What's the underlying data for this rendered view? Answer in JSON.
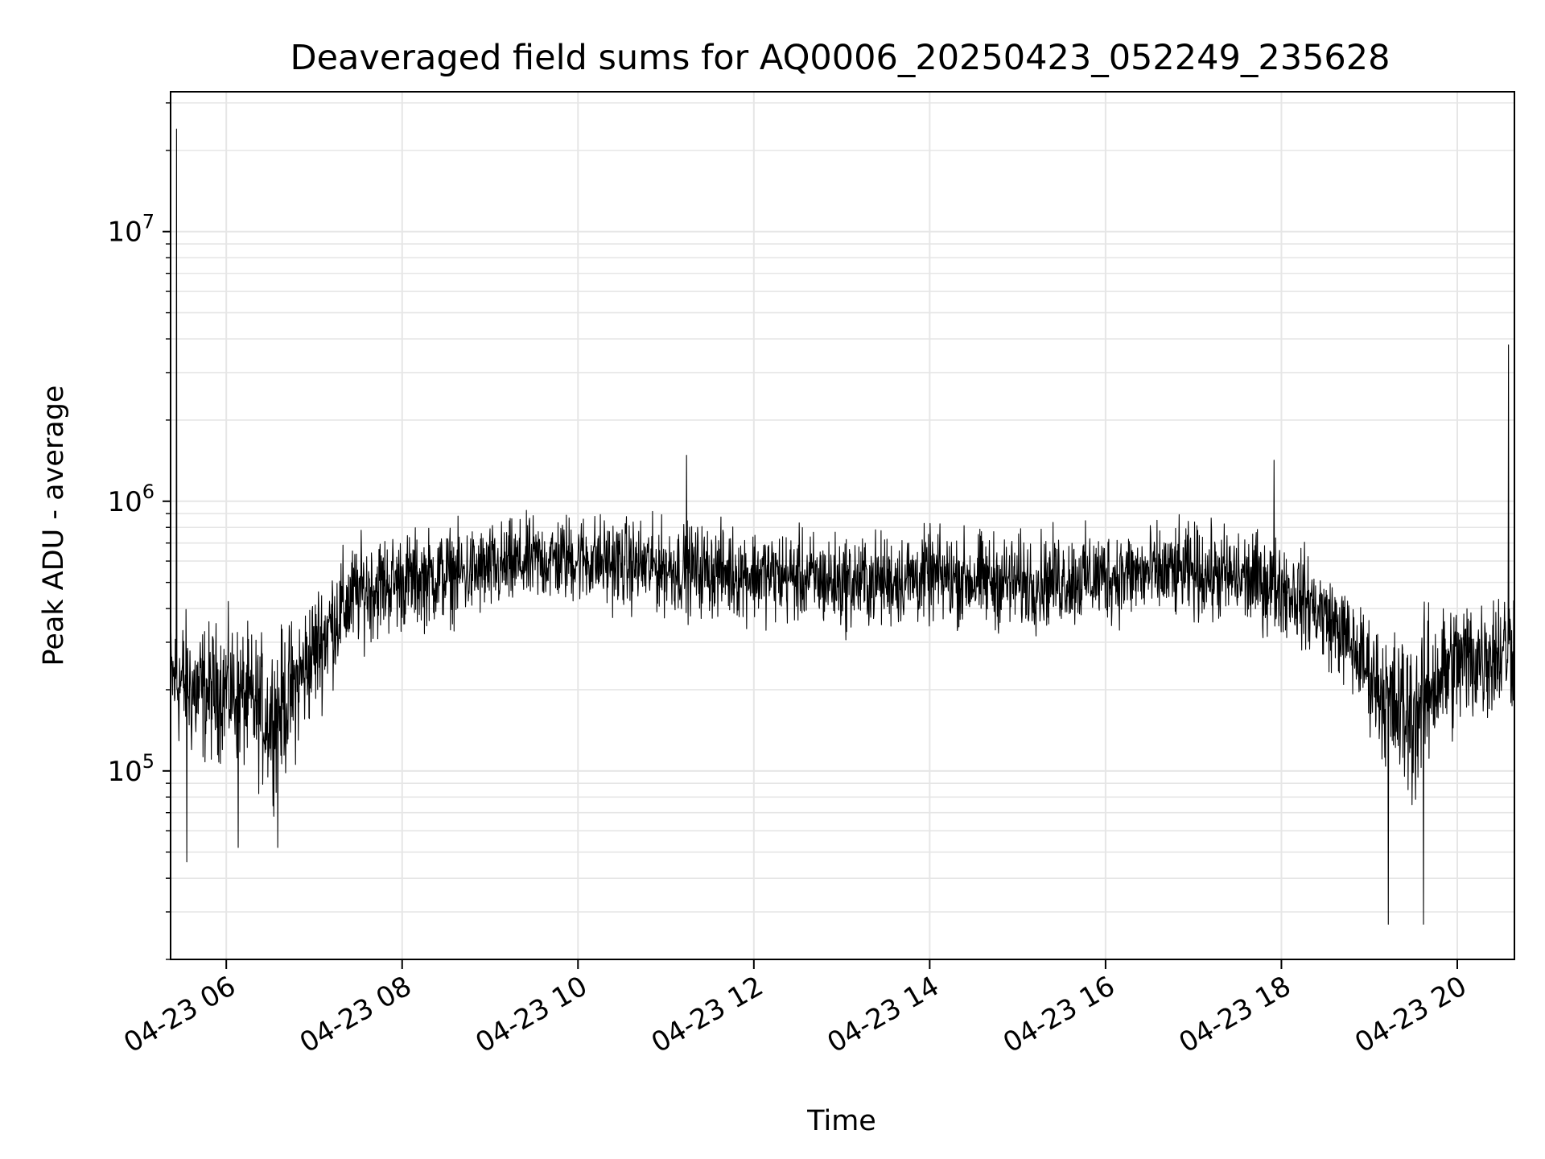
{
  "chart_data": {
    "type": "line",
    "title": "Deaveraged field sums for AQ0006_20250423_052249_235628",
    "xlabel": "Time",
    "ylabel": "Peak ADU - average",
    "y_scale": "log",
    "ylim": [
      20000,
      33000000
    ],
    "xlim": [
      "04-23 05:22",
      "04-23 20:39"
    ],
    "grid": true,
    "line_color": "#000000",
    "grid_color": "#e6e6e6",
    "x_ticks": [
      {
        "label": "04-23 06",
        "value": "04-23 06:00"
      },
      {
        "label": "04-23 08",
        "value": "04-23 08:00"
      },
      {
        "label": "04-23 10",
        "value": "04-23 10:00"
      },
      {
        "label": "04-23 12",
        "value": "04-23 12:00"
      },
      {
        "label": "04-23 14",
        "value": "04-23 14:00"
      },
      {
        "label": "04-23 16",
        "value": "04-23 16:00"
      },
      {
        "label": "04-23 18",
        "value": "04-23 18:00"
      },
      {
        "label": "04-23 20",
        "value": "04-23 20:00"
      }
    ],
    "y_ticks": [
      {
        "base": "10",
        "exp": "5",
        "value": 100000
      },
      {
        "base": "10",
        "exp": "6",
        "value": 1000000
      },
      {
        "base": "10",
        "exp": "7",
        "value": 10000000
      }
    ],
    "series": [
      {
        "x": [
          "04-23 05:22",
          "04-23 05:30",
          "04-23 05:40",
          "04-23 05:50",
          "04-23 06:00",
          "04-23 06:15",
          "04-23 06:30",
          "04-23 06:45",
          "04-23 07:00",
          "04-23 07:15",
          "04-23 07:30",
          "04-23 07:45",
          "04-23 08:00",
          "04-23 08:30",
          "04-23 09:00",
          "04-23 09:30",
          "04-23 10:00",
          "04-23 10:30",
          "04-23 11:00",
          "04-23 11:30",
          "04-23 12:00",
          "04-23 12:30",
          "04-23 13:00",
          "04-23 13:30",
          "04-23 14:00",
          "04-23 14:30",
          "04-23 15:00",
          "04-23 15:30",
          "04-23 16:00",
          "04-23 16:30",
          "04-23 17:00",
          "04-23 17:30",
          "04-23 18:00",
          "04-23 18:20",
          "04-23 18:40",
          "04-23 19:00",
          "04-23 19:15",
          "04-23 19:30",
          "04-23 19:45",
          "04-23 20:00",
          "04-23 20:15",
          "04-23 20:30",
          "04-23 20:39"
        ],
        "envelope_low": [
          120000,
          100000,
          90000,
          95000,
          100000,
          85000,
          70000,
          90000,
          140000,
          200000,
          260000,
          280000,
          300000,
          320000,
          340000,
          380000,
          380000,
          360000,
          350000,
          340000,
          330000,
          320000,
          300000,
          310000,
          320000,
          310000,
          300000,
          310000,
          320000,
          330000,
          330000,
          310000,
          290000,
          250000,
          200000,
          130000,
          80000,
          60000,
          100000,
          120000,
          130000,
          140000,
          150000
        ],
        "envelope_high": [
          400000,
          450000,
          420000,
          400000,
          420000,
          380000,
          350000,
          420000,
          550000,
          700000,
          800000,
          850000,
          850000,
          880000,
          900000,
          950000,
          1000000,
          950000,
          920000,
          900000,
          880000,
          850000,
          830000,
          840000,
          860000,
          850000,
          830000,
          850000,
          870000,
          880000,
          900000,
          870000,
          820000,
          700000,
          550000,
          420000,
          380000,
          420000,
          480000,
          520000,
          540000,
          560000,
          600000
        ]
      }
    ],
    "spikes": [
      {
        "x": "04-23 05:26",
        "y": 24000000
      },
      {
        "x": "04-23 05:33",
        "y": 46000
      },
      {
        "x": "04-23 06:08",
        "y": 52000
      },
      {
        "x": "04-23 06:35",
        "y": 52000
      },
      {
        "x": "04-23 11:14",
        "y": 1480000
      },
      {
        "x": "04-23 17:55",
        "y": 1420000
      },
      {
        "x": "04-23 19:13",
        "y": 27000
      },
      {
        "x": "04-23 19:37",
        "y": 27000
      },
      {
        "x": "04-23 20:35",
        "y": 3800000
      }
    ]
  }
}
